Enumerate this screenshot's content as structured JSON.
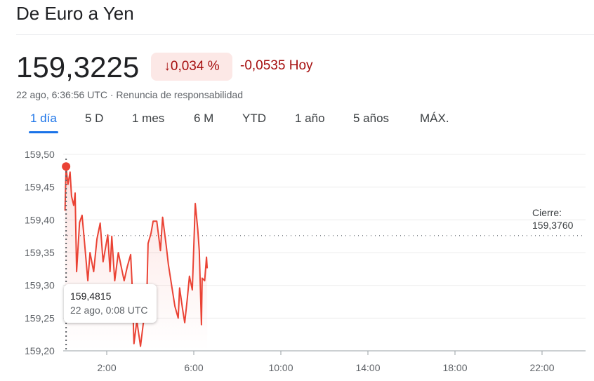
{
  "title": "De Euro a Yen",
  "price": "159,3225",
  "change_pct": "↓0,034 %",
  "change_abs": "-0,0535 Hoy",
  "meta": "22 ago, 6:36:56 UTC · Renuncia de responsabilidad",
  "tabs": [
    "1 día",
    "5 D",
    "1 mes",
    "6 M",
    "YTD",
    "1 año",
    "5 años",
    "MÁX."
  ],
  "active_tab": "1 día",
  "colors": {
    "line": "#ea4335",
    "accent": "#1a73e8",
    "negative": "#a50e0e",
    "badge_bg": "#fce8e6"
  },
  "tooltip": {
    "value": "159,4815",
    "date": "22 ago, 0:08 UTC"
  },
  "close": {
    "label": "Cierre:",
    "value": "159,3760"
  },
  "chart_data": {
    "type": "line",
    "x_ticks": [
      "2:00",
      "6:00",
      "10:00",
      "14:00",
      "18:00",
      "22:00"
    ],
    "y_ticks": [
      "159,20",
      "159,25",
      "159,30",
      "159,35",
      "159,40",
      "159,45",
      "159,50"
    ],
    "xlim": [
      "0:00",
      "24:00"
    ],
    "ylim": [
      159.2,
      159.5
    ],
    "previous_close": 159.376,
    "grid": true,
    "highlight": {
      "time": "0:08",
      "value": 159.4815
    },
    "points": [
      [
        "0:05",
        159.414
      ],
      [
        "0:08",
        159.4815
      ],
      [
        "0:13",
        159.454
      ],
      [
        "0:19",
        159.473
      ],
      [
        "0:23",
        159.436
      ],
      [
        "0:29",
        159.422
      ],
      [
        "0:33",
        159.441
      ],
      [
        "0:37",
        159.321
      ],
      [
        "0:45",
        159.396
      ],
      [
        "0:52",
        159.407
      ],
      [
        "0:59",
        159.364
      ],
      [
        "1:08",
        159.307
      ],
      [
        "1:14",
        159.35
      ],
      [
        "1:24",
        159.321
      ],
      [
        "1:33",
        159.371
      ],
      [
        "1:42",
        159.395
      ],
      [
        "1:50",
        159.336
      ],
      [
        "2:03",
        159.377
      ],
      [
        "2:09",
        159.321
      ],
      [
        "2:14",
        159.375
      ],
      [
        "2:22",
        159.307
      ],
      [
        "2:32",
        159.35
      ],
      [
        "2:48",
        159.307
      ],
      [
        "2:57",
        159.329
      ],
      [
        "3:06",
        159.347
      ],
      [
        "3:10",
        159.3
      ],
      [
        "3:15",
        159.211
      ],
      [
        "3:23",
        159.246
      ],
      [
        "3:33",
        159.207
      ],
      [
        "3:41",
        159.243
      ],
      [
        "3:49",
        159.246
      ],
      [
        "3:54",
        159.364
      ],
      [
        "4:02",
        159.379
      ],
      [
        "4:08",
        159.398
      ],
      [
        "4:18",
        159.398
      ],
      [
        "4:28",
        159.353
      ],
      [
        "4:34",
        159.404
      ],
      [
        "4:44",
        159.361
      ],
      [
        "4:50",
        159.332
      ],
      [
        "5:00",
        159.296
      ],
      [
        "5:08",
        159.268
      ],
      [
        "5:17",
        159.25
      ],
      [
        "5:21",
        159.296
      ],
      [
        "5:29",
        159.264
      ],
      [
        "5:35",
        159.243
      ],
      [
        "5:42",
        159.279
      ],
      [
        "5:48",
        159.314
      ],
      [
        "5:56",
        159.293
      ],
      [
        "6:04",
        159.425
      ],
      [
        "6:11",
        159.385
      ],
      [
        "6:15",
        159.353
      ],
      [
        "6:21",
        159.24
      ],
      [
        "6:23",
        159.311
      ],
      [
        "6:30",
        159.307
      ],
      [
        "6:35",
        159.343
      ],
      [
        "6:37",
        159.326
      ]
    ]
  }
}
